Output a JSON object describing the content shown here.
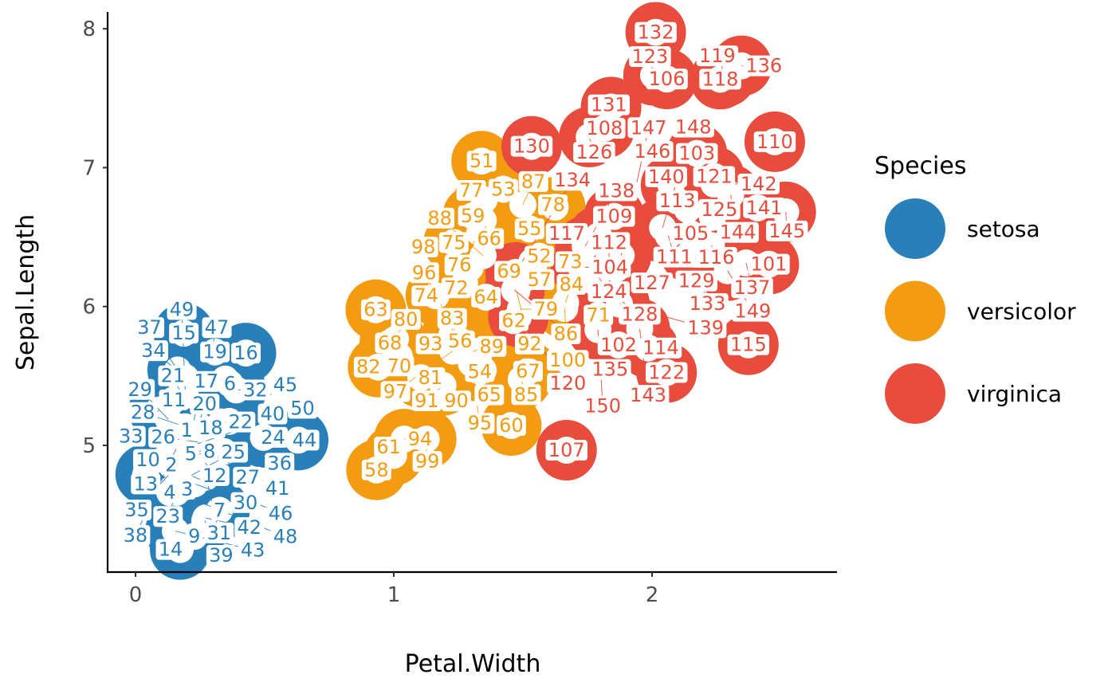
{
  "chart_data": {
    "type": "scatter",
    "title": "",
    "xlabel": "Petal.Width",
    "ylabel": "Sepal.Length",
    "xlim": [
      -0.1,
      2.7
    ],
    "ylim": [
      4.1,
      8.1
    ],
    "x_ticks": [
      0,
      1,
      2
    ],
    "y_ticks": [
      5,
      6,
      7,
      8
    ],
    "grid": false,
    "legend": {
      "title": "Species",
      "placement": "right",
      "entries": [
        "setosa",
        "versicolor",
        "virginica"
      ]
    },
    "colors": {
      "setosa": "#2980b9",
      "versicolor": "#f39c12",
      "virginica": "#e74c3c"
    },
    "point_labels": "row number",
    "series": [
      {
        "name": "setosa",
        "start_index": 1,
        "x": [
          0.2,
          0.2,
          0.2,
          0.2,
          0.2,
          0.4,
          0.3,
          0.2,
          0.2,
          0.1,
          0.2,
          0.2,
          0.1,
          0.1,
          0.2,
          0.4,
          0.4,
          0.3,
          0.3,
          0.3,
          0.2,
          0.4,
          0.2,
          0.5,
          0.2,
          0.2,
          0.4,
          0.2,
          0.2,
          0.2,
          0.2,
          0.4,
          0.1,
          0.2,
          0.2,
          0.2,
          0.2,
          0.1,
          0.2,
          0.2,
          0.3,
          0.3,
          0.2,
          0.6,
          0.4,
          0.3,
          0.2,
          0.2,
          0.2,
          0.2
        ],
        "y": [
          5.1,
          4.9,
          4.7,
          4.6,
          5.0,
          5.4,
          4.6,
          5.0,
          4.4,
          4.9,
          5.4,
          4.8,
          4.8,
          4.3,
          5.8,
          5.7,
          5.4,
          5.1,
          5.7,
          5.1,
          5.4,
          5.1,
          4.6,
          5.1,
          4.8,
          5.0,
          5.0,
          5.2,
          5.2,
          4.7,
          4.8,
          5.4,
          5.2,
          5.5,
          4.9,
          5.0,
          5.5,
          4.9,
          4.4,
          5.1,
          5.0,
          4.5,
          4.4,
          5.0,
          5.1,
          4.8,
          5.1,
          4.6,
          5.3,
          5.0
        ]
      },
      {
        "name": "versicolor",
        "start_index": 51,
        "x": [
          1.4,
          1.5,
          1.5,
          1.3,
          1.5,
          1.3,
          1.6,
          1.0,
          1.3,
          1.4,
          1.0,
          1.5,
          1.0,
          1.4,
          1.3,
          1.4,
          1.5,
          1.0,
          1.5,
          1.1,
          1.8,
          1.3,
          1.5,
          1.2,
          1.3,
          1.4,
          1.4,
          1.7,
          1.5,
          1.0,
          1.1,
          1.0,
          1.2,
          1.6,
          1.5,
          1.6,
          1.5,
          1.3,
          1.3,
          1.3,
          1.2,
          1.4,
          1.2,
          1.0,
          1.3,
          1.2,
          1.3,
          1.3,
          1.1,
          1.3
        ],
        "y": [
          7.0,
          6.4,
          6.9,
          5.5,
          6.5,
          5.7,
          6.3,
          4.9,
          6.6,
          5.2,
          5.0,
          5.9,
          6.0,
          6.1,
          5.6,
          6.7,
          5.6,
          5.8,
          6.2,
          5.6,
          5.9,
          6.1,
          6.3,
          6.1,
          6.4,
          6.6,
          6.8,
          6.7,
          6.0,
          5.7,
          5.5,
          5.5,
          5.8,
          6.0,
          5.4,
          6.0,
          6.7,
          6.3,
          5.6,
          5.5,
          5.5,
          6.1,
          5.8,
          5.0,
          5.6,
          5.7,
          5.7,
          6.2,
          5.1,
          5.7
        ]
      },
      {
        "name": "virginica",
        "start_index": 101,
        "x": [
          2.5,
          1.9,
          2.1,
          1.8,
          2.2,
          2.1,
          1.7,
          1.8,
          1.8,
          2.5,
          2.0,
          1.9,
          2.1,
          2.0,
          2.4,
          2.3,
          1.8,
          2.2,
          2.3,
          1.5,
          2.3,
          2.0,
          2.0,
          1.8,
          2.1,
          1.8,
          1.8,
          1.8,
          2.1,
          1.6,
          1.9,
          2.0,
          2.2,
          1.5,
          1.4,
          2.3,
          2.4,
          1.8,
          1.8,
          2.1,
          2.4,
          2.3,
          1.9,
          2.3,
          2.5,
          2.3,
          1.9,
          2.0,
          2.3,
          1.8
        ],
        "y": [
          6.3,
          5.8,
          7.1,
          6.3,
          6.5,
          7.6,
          4.9,
          7.3,
          6.7,
          7.2,
          6.5,
          6.4,
          6.8,
          5.7,
          5.8,
          6.4,
          6.5,
          7.7,
          7.7,
          6.0,
          6.9,
          5.6,
          7.7,
          6.3,
          6.7,
          7.2,
          6.2,
          6.1,
          6.4,
          7.2,
          7.4,
          7.9,
          6.4,
          6.3,
          6.1,
          7.7,
          6.3,
          6.4,
          6.0,
          6.9,
          6.7,
          6.9,
          5.8,
          6.8,
          6.7,
          6.7,
          6.3,
          6.5,
          6.2,
          5.9
        ]
      }
    ]
  }
}
